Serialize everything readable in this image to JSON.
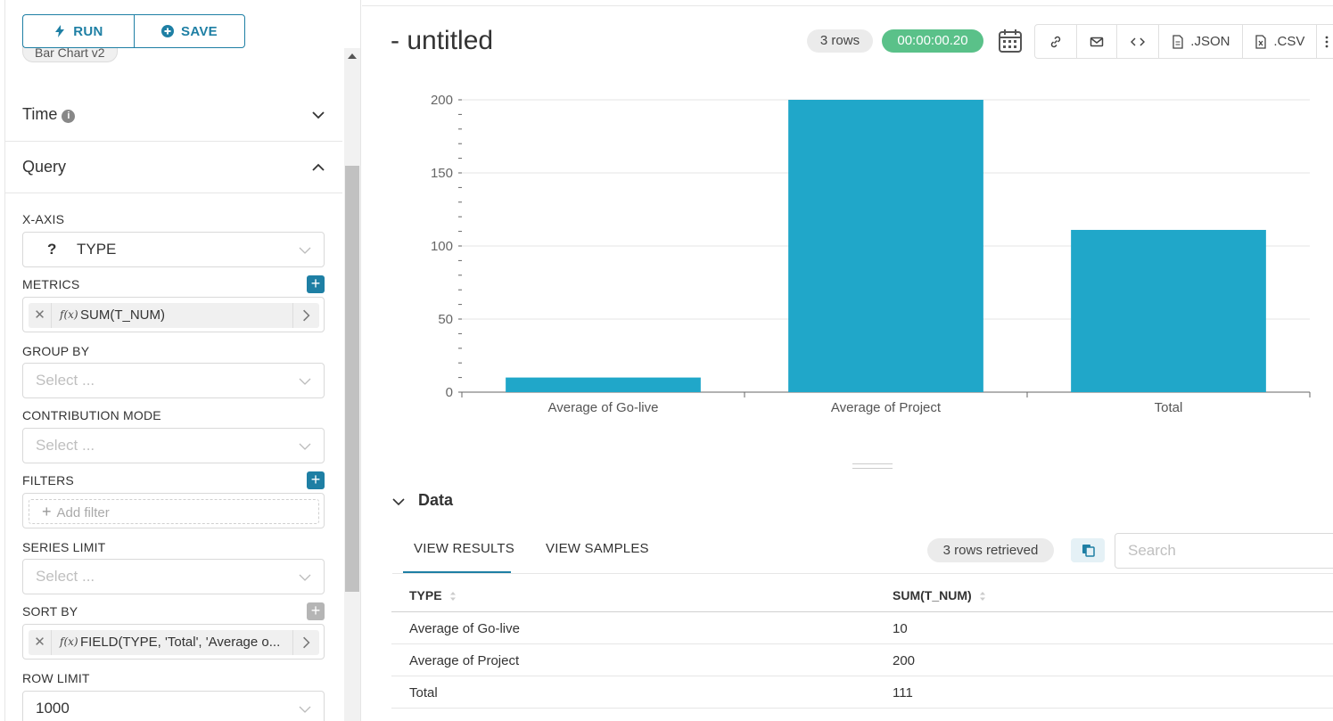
{
  "toolbar": {
    "run_label": "RUN",
    "save_label": "SAVE",
    "viz_type": "Bar Chart v2"
  },
  "sections": {
    "time": {
      "title": "Time"
    },
    "query": {
      "title": "Query"
    }
  },
  "fields": {
    "xaxis": {
      "label": "X-AXIS",
      "icon_text": "?",
      "value": "TYPE"
    },
    "metrics": {
      "label": "METRICS",
      "fx": "f(x)",
      "value": "SUM(T_NUM)"
    },
    "groupby": {
      "label": "GROUP BY",
      "placeholder": "Select ..."
    },
    "contribution": {
      "label": "CONTRIBUTION MODE",
      "placeholder": "Select ..."
    },
    "filters": {
      "label": "FILTERS",
      "add_filter": "Add filter"
    },
    "series_limit": {
      "label": "SERIES LIMIT",
      "placeholder": "Select ..."
    },
    "sortby": {
      "label": "SORT BY",
      "fx": "f(x)",
      "value": "FIELD(TYPE, 'Total', 'Average o..."
    },
    "row_limit": {
      "label": "ROW LIMIT",
      "value": "1000"
    }
  },
  "header": {
    "title": "- untitled",
    "rows_badge": "3 rows",
    "query_time": "00:00:00.20",
    "json_label": ".JSON",
    "csv_label": ".CSV"
  },
  "chart_data": {
    "type": "bar",
    "categories": [
      "Average of Go-live",
      "Average of Project",
      "Total"
    ],
    "values": [
      10,
      200,
      111
    ],
    "ylim": [
      0,
      200
    ],
    "yticks": [
      0,
      50,
      100,
      150,
      200
    ],
    "grid": true,
    "color": "#20a7c9"
  },
  "data_panel": {
    "title": "Data",
    "tab_results": "VIEW RESULTS",
    "tab_samples": "VIEW SAMPLES",
    "retrieved": "3 rows retrieved",
    "search_placeholder": "Search",
    "columns": [
      "TYPE",
      "SUM(T_NUM)"
    ],
    "rows": [
      [
        "Average of Go-live",
        "10"
      ],
      [
        "Average of Project",
        "200"
      ],
      [
        "Total",
        "111"
      ]
    ]
  },
  "colors": {
    "accent": "#1e7fa4",
    "success": "#5ac189",
    "bar": "#20a7c9"
  }
}
